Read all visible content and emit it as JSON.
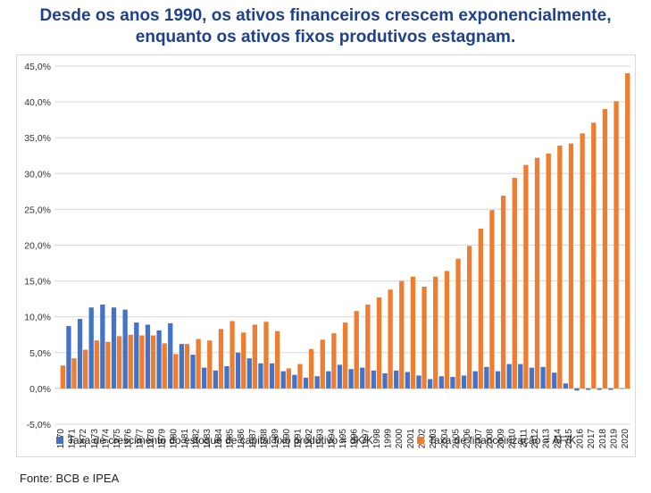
{
  "title": {
    "line1": "Desde os anos 1990, os ativos financeiros crescem exponencialmente,",
    "line2": "enquanto os ativos fixos produtivos estagnam."
  },
  "source": "Fonte:  BCB e IPEA",
  "colors": {
    "series1": "#4472c4",
    "series2": "#ed7d31",
    "grid": "#d9d9d9",
    "title": "#1f3f8f"
  },
  "chart_data": {
    "type": "bar",
    "title": "",
    "xlabel": "",
    "ylabel": "",
    "ylim": [
      -5,
      45
    ],
    "yticks": [
      -5,
      0,
      5,
      10,
      15,
      20,
      25,
      30,
      35,
      40,
      45
    ],
    "ytick_labels": [
      "-5,0%",
      "0,0%",
      "5,0%",
      "10,0%",
      "15,0%",
      "20,0%",
      "25,0%",
      "30,0%",
      "35,0%",
      "40,0%",
      "45,0%"
    ],
    "grid": true,
    "legend": "bottom",
    "categories": [
      "1970",
      "1971",
      "1972",
      "1973",
      "1974",
      "1975",
      "1976",
      "1977",
      "1978",
      "1979",
      "1980",
      "1981",
      "1982",
      "1983",
      "1984",
      "1985",
      "1986",
      "1987",
      "1988",
      "1989",
      "1990",
      "1991",
      "1992",
      "1993",
      "1994",
      "1995",
      "1996",
      "1997",
      "1998",
      "1999",
      "2000",
      "2001",
      "2002",
      "2003",
      "2004",
      "2005",
      "2006",
      "2007",
      "2008",
      "2009",
      "2010",
      "2011",
      "2012",
      "2013",
      "2014",
      "2015",
      "2016",
      "2017",
      "2018",
      "2019",
      "2020"
    ],
    "series": [
      {
        "name": "Taxa de crescimento do estoque de capital fixo produtivo = dK/K",
        "values": [
          null,
          8.7,
          9.7,
          11.3,
          11.7,
          11.3,
          11.0,
          9.2,
          8.9,
          8.1,
          9.1,
          6.2,
          4.7,
          2.9,
          2.5,
          3.1,
          5.0,
          4.2,
          3.5,
          3.5,
          2.4,
          1.9,
          1.5,
          1.7,
          2.4,
          3.3,
          2.7,
          2.9,
          2.5,
          2.1,
          2.5,
          2.3,
          1.8,
          1.3,
          1.7,
          1.6,
          1.8,
          2.4,
          3.0,
          2.4,
          3.4,
          3.4,
          2.9,
          3.0,
          2.2,
          0.7,
          -0.3,
          -0.2,
          -0.2,
          -0.2,
          0.0
        ]
      },
      {
        "name": "Taxa de financeirização = AF/K",
        "values": [
          3.2,
          4.2,
          5.4,
          6.7,
          6.5,
          7.3,
          7.5,
          7.4,
          7.4,
          6.3,
          4.8,
          6.2,
          6.9,
          6.7,
          8.3,
          9.4,
          7.8,
          8.9,
          9.3,
          8.0,
          2.8,
          3.4,
          5.5,
          6.8,
          7.7,
          9.2,
          10.8,
          11.7,
          12.7,
          13.8,
          15.0,
          15.6,
          14.2,
          15.6,
          16.4,
          18.1,
          19.9,
          22.3,
          24.9,
          26.9,
          29.4,
          31.2,
          32.2,
          32.8,
          33.9,
          34.2,
          35.6,
          37.1,
          39.0,
          40.1,
          44.0
        ]
      }
    ]
  }
}
